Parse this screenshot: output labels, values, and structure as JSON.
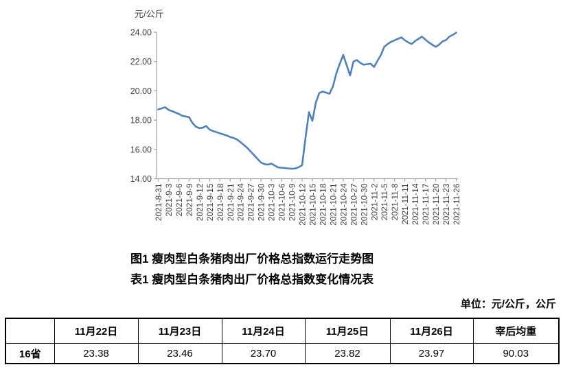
{
  "titles": {
    "figure": "图1 瘦肉型白条猪肉出厂价格总指数运行走势图",
    "table": "表1 瘦肉型白条猪肉出厂价格总指数变化情况表"
  },
  "unit_note": "单位：元/公斤，公斤",
  "chart_data": {
    "type": "line",
    "ylabel": "元/公斤",
    "ylim": [
      14,
      24
    ],
    "y_tick_labels": [
      "14.00",
      "16.00",
      "18.00",
      "20.00",
      "22.00",
      "24.00"
    ],
    "x_tick_labels": [
      "2021-8-31",
      "2021-9-3",
      "2021-9-6",
      "2021-9-9",
      "2021-9-12",
      "2021-9-15",
      "2021-9-18",
      "2021-9-21",
      "2021-9-24",
      "2021-9-27",
      "2021-9-30",
      "2021-10-3",
      "2021-10-6",
      "2021-10-9",
      "2021-10-12",
      "2021-10-15",
      "2021-10-18",
      "2021-10-21",
      "2021-10-24",
      "2021-10-27",
      "2021-10-30",
      "2021-11-2",
      "2021-11-5",
      "2021-11-8",
      "2021-11-11",
      "2021-11-14",
      "2021-11-17",
      "2021-11-20",
      "2021-11-23",
      "2021-11-26"
    ],
    "x_tick_every_n_points": 3,
    "x": [
      "2021-8-31",
      "2021-9-1",
      "2021-9-2",
      "2021-9-3",
      "2021-9-4",
      "2021-9-5",
      "2021-9-6",
      "2021-9-7",
      "2021-9-8",
      "2021-9-9",
      "2021-9-10",
      "2021-9-11",
      "2021-9-12",
      "2021-9-13",
      "2021-9-14",
      "2021-9-15",
      "2021-9-16",
      "2021-9-17",
      "2021-9-18",
      "2021-9-19",
      "2021-9-20",
      "2021-9-21",
      "2021-9-22",
      "2021-9-23",
      "2021-9-24",
      "2021-9-25",
      "2021-9-26",
      "2021-9-27",
      "2021-9-28",
      "2021-9-29",
      "2021-9-30",
      "2021-10-1",
      "2021-10-2",
      "2021-10-3",
      "2021-10-4",
      "2021-10-5",
      "2021-10-6",
      "2021-10-7",
      "2021-10-8",
      "2021-10-9",
      "2021-10-10",
      "2021-10-11",
      "2021-10-12",
      "2021-10-13",
      "2021-10-14",
      "2021-10-15",
      "2021-10-16",
      "2021-10-17",
      "2021-10-18",
      "2021-10-19",
      "2021-10-20",
      "2021-10-21",
      "2021-10-22",
      "2021-10-23",
      "2021-10-24",
      "2021-10-25",
      "2021-10-26",
      "2021-10-27",
      "2021-10-28",
      "2021-10-29",
      "2021-10-30",
      "2021-10-31",
      "2021-11-1",
      "2021-11-2",
      "2021-11-3",
      "2021-11-4",
      "2021-11-5",
      "2021-11-6",
      "2021-11-7",
      "2021-11-8",
      "2021-11-9",
      "2021-11-10",
      "2021-11-11",
      "2021-11-12",
      "2021-11-13",
      "2021-11-14",
      "2021-11-15",
      "2021-11-16",
      "2021-11-17",
      "2021-11-18",
      "2021-11-19",
      "2021-11-20",
      "2021-11-21",
      "2021-11-22",
      "2021-11-23",
      "2021-11-24",
      "2021-11-25",
      "2021-11-26"
    ],
    "values": [
      18.73,
      18.8,
      18.88,
      18.7,
      18.62,
      18.52,
      18.42,
      18.3,
      18.25,
      18.2,
      17.8,
      17.55,
      17.45,
      17.48,
      17.6,
      17.35,
      17.25,
      17.18,
      17.1,
      17.02,
      16.95,
      16.85,
      16.78,
      16.68,
      16.5,
      16.3,
      16.1,
      15.85,
      15.6,
      15.35,
      15.1,
      15.0,
      14.96,
      15.03,
      14.9,
      14.77,
      14.75,
      14.73,
      14.7,
      14.68,
      14.7,
      14.78,
      14.92,
      16.8,
      18.55,
      17.95,
      19.2,
      19.85,
      19.95,
      19.88,
      19.8,
      20.3,
      21.2,
      21.85,
      22.45,
      21.75,
      21.05,
      22.0,
      22.1,
      21.9,
      21.78,
      21.82,
      21.85,
      21.63,
      22.05,
      22.45,
      23.0,
      23.2,
      23.35,
      23.45,
      23.55,
      23.65,
      23.45,
      23.3,
      23.2,
      23.4,
      23.55,
      23.7,
      23.5,
      23.3,
      23.15,
      23.0,
      23.15,
      23.38,
      23.46,
      23.7,
      23.82,
      23.97
    ],
    "line_color": "#4F81BD",
    "axis_color": "#A6A6A6",
    "tick_text_color": "#404040",
    "grid": "off",
    "legend": "none"
  },
  "table": {
    "headers": [
      "",
      "11月22日",
      "11月23日",
      "11月24日",
      "11月25日",
      "11月26日",
      "宰后均重"
    ],
    "rows": [
      {
        "label": "16省",
        "values": [
          "23.38",
          "23.46",
          "23.70",
          "23.82",
          "23.97",
          "90.03"
        ]
      }
    ]
  }
}
